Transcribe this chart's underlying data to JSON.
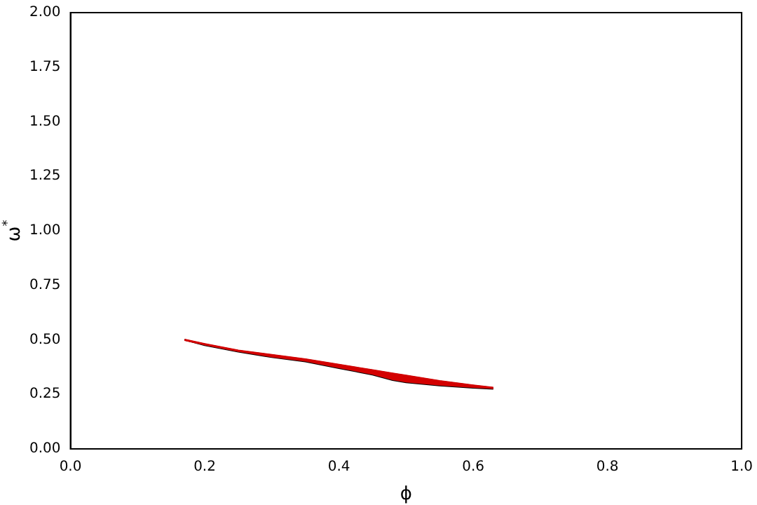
{
  "chart_data": {
    "type": "line",
    "xlabel": "ϕ",
    "ylabel": "ω$^{*}$",
    "xlim": [
      0,
      1
    ],
    "ylim": [
      0,
      2
    ],
    "xticks": [
      {
        "value": 0,
        "label": "0.0"
      },
      {
        "value": 0.2,
        "label": "0.2"
      },
      {
        "value": 0.4,
        "label": "0.4"
      },
      {
        "value": 0.6,
        "label": "0.6"
      },
      {
        "value": 0.8,
        "label": "0.8"
      },
      {
        "value": 1,
        "label": "1.0"
      }
    ],
    "yticks": [
      {
        "value": 0,
        "label": "0.00"
      },
      {
        "value": 0.25,
        "label": "0.25"
      },
      {
        "value": 0.5,
        "label": "0.50"
      },
      {
        "value": 0.75,
        "label": "0.75"
      },
      {
        "value": 1,
        "label": "1.00"
      },
      {
        "value": 1.25,
        "label": "1.25"
      },
      {
        "value": 1.5,
        "label": "1.50"
      },
      {
        "value": 1.75,
        "label": "1.75"
      },
      {
        "value": 2,
        "label": "2.00"
      }
    ],
    "grid": false,
    "legend": false,
    "marker": "none",
    "series": [
      {
        "color": "#d40000",
        "x": [
          0.17,
          0.2,
          0.25,
          0.3,
          0.35,
          0.4,
          0.45,
          0.48,
          0.5,
          0.55,
          0.6,
          0.63
        ],
        "values": [
          0.5,
          0.48,
          0.45,
          0.43,
          0.41,
          0.385,
          0.36,
          0.345,
          0.335,
          0.31,
          0.29,
          0.28
        ],
        "upper": [
          0.5,
          0.48,
          0.45,
          0.43,
          0.41,
          0.385,
          0.36,
          0.345,
          0.335,
          0.31,
          0.29,
          0.28
        ],
        "lower": [
          0.5,
          0.475,
          0.445,
          0.42,
          0.4,
          0.37,
          0.34,
          0.315,
          0.305,
          0.29,
          0.28,
          0.275
        ]
      }
    ]
  }
}
